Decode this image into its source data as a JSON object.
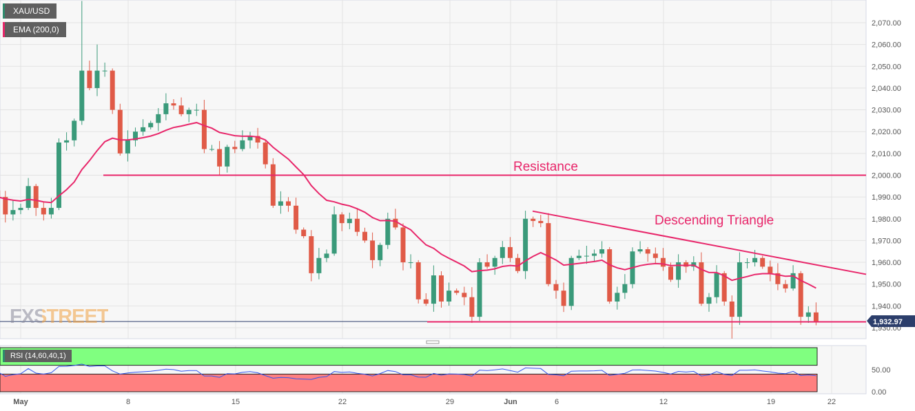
{
  "legend": {
    "symbol": "XAU/USD",
    "ema": "EMA (200,0)",
    "rsi": "RSI (14,60,40,1)"
  },
  "watermark": "FXSTREET",
  "colors": {
    "up": "#3a9a7a",
    "down": "#e05a47",
    "ema": "#e8266a",
    "annotation": "#e8266a",
    "price_line": "#2c3e6b",
    "rsi_line": "#3355ee",
    "rsi_upper_zone": "#80ff80",
    "rsi_lower_zone": "#ff8080"
  },
  "chart_data": [
    {
      "type": "candlestick",
      "title": "XAU/USD",
      "ylim": [
        1923,
        2083
      ],
      "y_ticks": [
        "2,070.00",
        "2,060.00",
        "2,050.00",
        "2,040.00",
        "2,030.00",
        "2,020.00",
        "2,010.00",
        "2,000.00",
        "1,990.00",
        "1,980.00",
        "1,970.00",
        "1,960.00",
        "1,950.00",
        "1,940.00",
        "1,930.00"
      ],
      "x_ticks": [
        "May",
        "8",
        "15",
        "22",
        "29",
        "Jun",
        "6",
        "12",
        "19",
        "22"
      ],
      "closes": [
        1990,
        1982,
        1984,
        1985,
        1995,
        1985,
        1982,
        1985,
        2015,
        2016,
        2025,
        2048,
        2040,
        2048,
        2048,
        2030,
        2010,
        2016,
        2020,
        2022,
        2024,
        2028,
        2033,
        2032,
        2028,
        2030,
        2030,
        2012,
        2012,
        2004,
        2013,
        2012,
        2016,
        2018,
        2015,
        2005,
        1986,
        1988,
        1986,
        1975,
        1972,
        1955,
        1962,
        1964,
        1982,
        1978,
        1980,
        1974,
        1970,
        1961,
        1968,
        1980,
        1976,
        1960,
        1960,
        1943,
        1941,
        1954,
        1942,
        1947,
        1946,
        1944,
        1935,
        1960,
        1958,
        1962,
        1967,
        1962,
        1956,
        1980,
        1979,
        1978,
        1950,
        1947,
        1940,
        1962,
        1963,
        1963,
        1964,
        1966,
        1942,
        1946,
        1950,
        1965,
        1966,
        1964,
        1962,
        1958,
        1952,
        1960,
        1958,
        1960,
        1941,
        1944,
        1955,
        1942,
        1935,
        1960,
        1960,
        1962,
        1958,
        1955,
        1950,
        1948,
        1955,
        1935,
        1937,
        1933
      ],
      "extreme_wicks": {
        "high": {
          "11": 2080,
          "13": 2060
        },
        "low": {
          "96": 1925
        }
      },
      "indicator": "EMA (200,0)",
      "current_price": "1,932.97",
      "annotations": [
        {
          "label": "Resistance",
          "type": "horizontal",
          "price": 2000
        },
        {
          "label": "Descending Triangle",
          "type": "trendline",
          "from_price": 1983.5,
          "to_price": 1954.5
        },
        {
          "label": "",
          "type": "horizontal",
          "price": 1933
        }
      ]
    },
    {
      "type": "line",
      "title": "RSI (14,60,40,1)",
      "ylim": [
        0,
        100
      ],
      "y_ticks": [
        "50.00",
        "0.00"
      ],
      "zones": {
        "upper": [
          60,
          100
        ],
        "lower": [
          0,
          40
        ]
      }
    }
  ]
}
